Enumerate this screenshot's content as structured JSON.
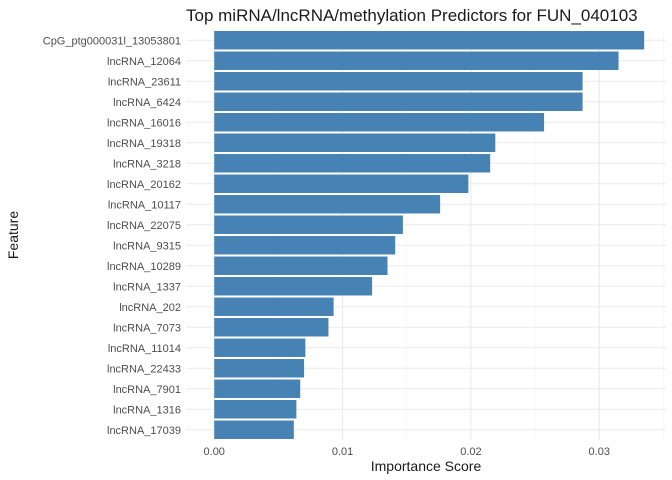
{
  "chart_data": {
    "type": "bar",
    "orientation": "horizontal",
    "title": "Top miRNA/lncRNA/methylation Predictors for FUN_040103",
    "xlabel": "Importance Score",
    "ylabel": "Feature",
    "xlim": [
      -0.0022,
      0.0352
    ],
    "xticks": [
      0.0,
      0.01,
      0.02,
      0.03
    ],
    "xtick_labels": [
      "0.00",
      "0.01",
      "0.02",
      "0.03"
    ],
    "grid": true,
    "legend": "none",
    "bar_color": "#4682b4",
    "categories": [
      "CpG_ptg000031l_13053801",
      "lncRNA_12064",
      "lncRNA_23611",
      "lncRNA_6424",
      "lncRNA_16016",
      "lncRNA_19318",
      "lncRNA_3218",
      "lncRNA_20162",
      "lncRNA_10117",
      "lncRNA_22075",
      "lncRNA_9315",
      "lncRNA_10289",
      "lncRNA_1337",
      "lncRNA_202",
      "lncRNA_7073",
      "lncRNA_11014",
      "lncRNA_22433",
      "lncRNA_7901",
      "lncRNA_1316",
      "lncRNA_17039"
    ],
    "values": [
      0.0335,
      0.0315,
      0.0287,
      0.0287,
      0.0257,
      0.0219,
      0.0215,
      0.0198,
      0.0176,
      0.0147,
      0.0141,
      0.0135,
      0.0123,
      0.0093,
      0.0089,
      0.0071,
      0.007,
      0.0067,
      0.0064,
      0.0062
    ]
  }
}
